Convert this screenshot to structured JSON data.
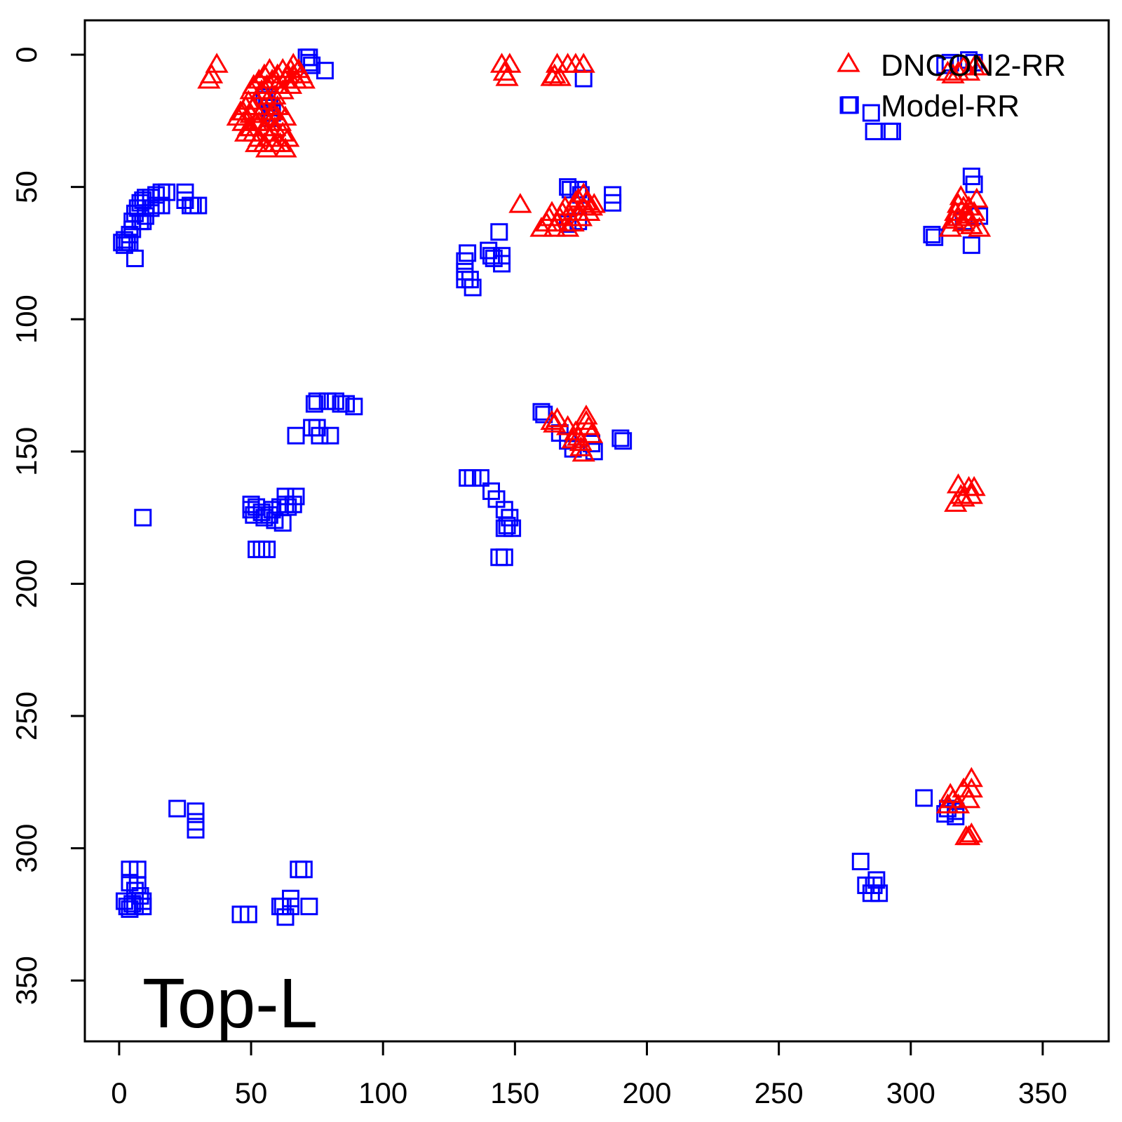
{
  "chart_data": {
    "type": "scatter",
    "title": "",
    "xlabel": "",
    "ylabel": "",
    "annotation": "Top-L",
    "xlim": [
      -13,
      375
    ],
    "ylim": [
      -13,
      373
    ],
    "y_reversed": true,
    "x_ticks": [
      0,
      50,
      100,
      150,
      200,
      250,
      300,
      350
    ],
    "y_ticks": [
      0,
      50,
      100,
      150,
      200,
      250,
      300,
      350
    ],
    "legend_position": "top-right",
    "legend": [
      {
        "label": "DNCON2-RR",
        "marker": "triangle",
        "color": "#ff0000"
      },
      {
        "label": "Model-RR",
        "marker": "square",
        "color": "#0000ff"
      }
    ],
    "series": [
      {
        "name": "Model-RR",
        "marker": "square",
        "color": "#0000ff",
        "points": [
          [
            71,
            1
          ],
          [
            72,
            1
          ],
          [
            72,
            3
          ],
          [
            73,
            4
          ],
          [
            78,
            6
          ],
          [
            55,
            16
          ],
          [
            56,
            17
          ],
          [
            57,
            20
          ],
          [
            58,
            22
          ],
          [
            57,
            24
          ],
          [
            176,
            9
          ],
          [
            313,
            4
          ],
          [
            315,
            3
          ],
          [
            322,
            2
          ],
          [
            324,
            3
          ],
          [
            277,
            19
          ],
          [
            285,
            22
          ],
          [
            286,
            29
          ],
          [
            292,
            29
          ],
          [
            293,
            29
          ],
          [
            1,
            71
          ],
          [
            2,
            72
          ],
          [
            3,
            71
          ],
          [
            4,
            68
          ],
          [
            5,
            66
          ],
          [
            5,
            63
          ],
          [
            6,
            60
          ],
          [
            7,
            58
          ],
          [
            8,
            56
          ],
          [
            9,
            55
          ],
          [
            10,
            54
          ],
          [
            12,
            54
          ],
          [
            14,
            53
          ],
          [
            16,
            52
          ],
          [
            18,
            52
          ],
          [
            25,
            52
          ],
          [
            25,
            55
          ],
          [
            27,
            57
          ],
          [
            28,
            57
          ],
          [
            30,
            57
          ],
          [
            6,
            77
          ],
          [
            8,
            63
          ],
          [
            9,
            63
          ],
          [
            10,
            61
          ],
          [
            12,
            58
          ],
          [
            14,
            57
          ],
          [
            16,
            57
          ],
          [
            2,
            70
          ],
          [
            4,
            71
          ],
          [
            131,
            78
          ],
          [
            131,
            82
          ],
          [
            131,
            85
          ],
          [
            132,
            75
          ],
          [
            133,
            85
          ],
          [
            134,
            88
          ],
          [
            140,
            74
          ],
          [
            141,
            76
          ],
          [
            142,
            77
          ],
          [
            144,
            67
          ],
          [
            145,
            76
          ],
          [
            145,
            79
          ],
          [
            170,
            50
          ],
          [
            171,
            51
          ],
          [
            174,
            51
          ],
          [
            175,
            53
          ],
          [
            170,
            64
          ],
          [
            174,
            63
          ],
          [
            187,
            53
          ],
          [
            187,
            56
          ],
          [
            323,
            46
          ],
          [
            324,
            49
          ],
          [
            326,
            61
          ],
          [
            320,
            63
          ],
          [
            323,
            72
          ],
          [
            308,
            68
          ],
          [
            309,
            69
          ],
          [
            74,
            132
          ],
          [
            75,
            131
          ],
          [
            79,
            131
          ],
          [
            82,
            131
          ],
          [
            84,
            132
          ],
          [
            86,
            132
          ],
          [
            89,
            133
          ],
          [
            67,
            144
          ],
          [
            73,
            141
          ],
          [
            75,
            141
          ],
          [
            76,
            144
          ],
          [
            80,
            144
          ],
          [
            160,
            135
          ],
          [
            161,
            136
          ],
          [
            167,
            143
          ],
          [
            170,
            146
          ],
          [
            172,
            149
          ],
          [
            179,
            147
          ],
          [
            180,
            150
          ],
          [
            190,
            145
          ],
          [
            191,
            146
          ],
          [
            9,
            175
          ],
          [
            50,
            170
          ],
          [
            50,
            172
          ],
          [
            51,
            174
          ],
          [
            52,
            171
          ],
          [
            54,
            173
          ],
          [
            55,
            175
          ],
          [
            57,
            174
          ],
          [
            58,
            172
          ],
          [
            59,
            176
          ],
          [
            61,
            171
          ],
          [
            62,
            177
          ],
          [
            63,
            170
          ],
          [
            63,
            167
          ],
          [
            64,
            171
          ],
          [
            66,
            170
          ],
          [
            67,
            167
          ],
          [
            52,
            187
          ],
          [
            54,
            187
          ],
          [
            56,
            187
          ],
          [
            132,
            160
          ],
          [
            134,
            160
          ],
          [
            137,
            160
          ],
          [
            141,
            165
          ],
          [
            143,
            168
          ],
          [
            146,
            172
          ],
          [
            148,
            175
          ],
          [
            146,
            179
          ],
          [
            147,
            178
          ],
          [
            149,
            179
          ],
          [
            144,
            190
          ],
          [
            146,
            190
          ],
          [
            22,
            285
          ],
          [
            29,
            286
          ],
          [
            29,
            290
          ],
          [
            29,
            293
          ],
          [
            4,
            308
          ],
          [
            7,
            308
          ],
          [
            4,
            313
          ],
          [
            6,
            316
          ],
          [
            7,
            314
          ],
          [
            8,
            318
          ],
          [
            9,
            320
          ],
          [
            2,
            320
          ],
          [
            3,
            322
          ],
          [
            4,
            323
          ],
          [
            5,
            321
          ],
          [
            6,
            322
          ],
          [
            9,
            322
          ],
          [
            46,
            325
          ],
          [
            49,
            325
          ],
          [
            61,
            322
          ],
          [
            62,
            322
          ],
          [
            63,
            326
          ],
          [
            65,
            319
          ],
          [
            65,
            322
          ],
          [
            68,
            308
          ],
          [
            70,
            308
          ],
          [
            72,
            322
          ],
          [
            305,
            281
          ],
          [
            313,
            287
          ],
          [
            314,
            285
          ],
          [
            317,
            286
          ],
          [
            317,
            288
          ],
          [
            281,
            305
          ],
          [
            283,
            314
          ],
          [
            285,
            317
          ],
          [
            286,
            314
          ],
          [
            287,
            312
          ],
          [
            288,
            317
          ]
        ]
      },
      {
        "name": "DNCON2-RR",
        "marker": "triangle",
        "color": "#ff0000",
        "points": [
          [
            34,
            10
          ],
          [
            35,
            8
          ],
          [
            37,
            4
          ],
          [
            145,
            4
          ],
          [
            146,
            7
          ],
          [
            147,
            9
          ],
          [
            148,
            4
          ],
          [
            164,
            9
          ],
          [
            165,
            8
          ],
          [
            166,
            4
          ],
          [
            167,
            9
          ],
          [
            170,
            4
          ],
          [
            173,
            4
          ],
          [
            176,
            4
          ],
          [
            314,
            7
          ],
          [
            316,
            8
          ],
          [
            318,
            7
          ],
          [
            320,
            5
          ],
          [
            322,
            7
          ],
          [
            324,
            5
          ],
          [
            326,
            5
          ],
          [
            45,
            24
          ],
          [
            46,
            22
          ],
          [
            47,
            26
          ],
          [
            48,
            20
          ],
          [
            49,
            28
          ],
          [
            49,
            18
          ],
          [
            50,
            23
          ],
          [
            50,
            14
          ],
          [
            51,
            30
          ],
          [
            51,
            12
          ],
          [
            52,
            26
          ],
          [
            52,
            18
          ],
          [
            53,
            10
          ],
          [
            53,
            32
          ],
          [
            54,
            22
          ],
          [
            54,
            14
          ],
          [
            55,
            8
          ],
          [
            55,
            28
          ],
          [
            55,
            34
          ],
          [
            56,
            18
          ],
          [
            56,
            12
          ],
          [
            57,
            6
          ],
          [
            57,
            26
          ],
          [
            57,
            32
          ],
          [
            58,
            22
          ],
          [
            58,
            10
          ],
          [
            59,
            16
          ],
          [
            59,
            28
          ],
          [
            59,
            34
          ],
          [
            60,
            8
          ],
          [
            60,
            20
          ],
          [
            60,
            12
          ],
          [
            61,
            26
          ],
          [
            61,
            34
          ],
          [
            62,
            6
          ],
          [
            62,
            14
          ],
          [
            62,
            30
          ],
          [
            63,
            10
          ],
          [
            63,
            24
          ],
          [
            63,
            36
          ],
          [
            64,
            8
          ],
          [
            64,
            32
          ],
          [
            65,
            6
          ],
          [
            65,
            12
          ],
          [
            66,
            4
          ],
          [
            66,
            8
          ],
          [
            67,
            10
          ],
          [
            68,
            6
          ],
          [
            69,
            8
          ],
          [
            70,
            10
          ],
          [
            47,
            22
          ],
          [
            48,
            30
          ],
          [
            50,
            28
          ],
          [
            52,
            34
          ],
          [
            56,
            36
          ],
          [
            58,
            30
          ],
          [
            60,
            24
          ],
          [
            55,
            20
          ],
          [
            53,
            26
          ],
          [
            51,
            20
          ],
          [
            152,
            57
          ],
          [
            160,
            66
          ],
          [
            162,
            64
          ],
          [
            163,
            62
          ],
          [
            164,
            60
          ],
          [
            165,
            66
          ],
          [
            166,
            64
          ],
          [
            167,
            62
          ],
          [
            168,
            60
          ],
          [
            169,
            58
          ],
          [
            170,
            66
          ],
          [
            171,
            62
          ],
          [
            172,
            64
          ],
          [
            172,
            58
          ],
          [
            173,
            56
          ],
          [
            174,
            60
          ],
          [
            175,
            62
          ],
          [
            176,
            58
          ],
          [
            177,
            56
          ],
          [
            178,
            60
          ],
          [
            179,
            58
          ],
          [
            180,
            57
          ],
          [
            176,
            53
          ],
          [
            174,
            55
          ],
          [
            315,
            66
          ],
          [
            316,
            63
          ],
          [
            317,
            60
          ],
          [
            318,
            57
          ],
          [
            319,
            54
          ],
          [
            320,
            64
          ],
          [
            321,
            61
          ],
          [
            322,
            58
          ],
          [
            323,
            65
          ],
          [
            324,
            60
          ],
          [
            325,
            55
          ],
          [
            326,
            66
          ],
          [
            320,
            58
          ],
          [
            322,
            62
          ],
          [
            318,
            62
          ],
          [
            164,
            139
          ],
          [
            165,
            140
          ],
          [
            166,
            138
          ],
          [
            170,
            141
          ],
          [
            172,
            146
          ],
          [
            173,
            143
          ],
          [
            174,
            145
          ],
          [
            175,
            149
          ],
          [
            176,
            151
          ],
          [
            177,
            139
          ],
          [
            178,
            141
          ],
          [
            179,
            144
          ],
          [
            175,
            147
          ],
          [
            177,
            137
          ],
          [
            317,
            170
          ],
          [
            318,
            163
          ],
          [
            319,
            167
          ],
          [
            320,
            168
          ],
          [
            322,
            164
          ],
          [
            323,
            167
          ],
          [
            324,
            164
          ],
          [
            314,
            284
          ],
          [
            315,
            280
          ],
          [
            316,
            282
          ],
          [
            318,
            284
          ],
          [
            320,
            278
          ],
          [
            322,
            282
          ],
          [
            323,
            278
          ],
          [
            323,
            274
          ],
          [
            321,
            296
          ],
          [
            322,
            296
          ],
          [
            323,
            295
          ]
        ]
      }
    ]
  }
}
